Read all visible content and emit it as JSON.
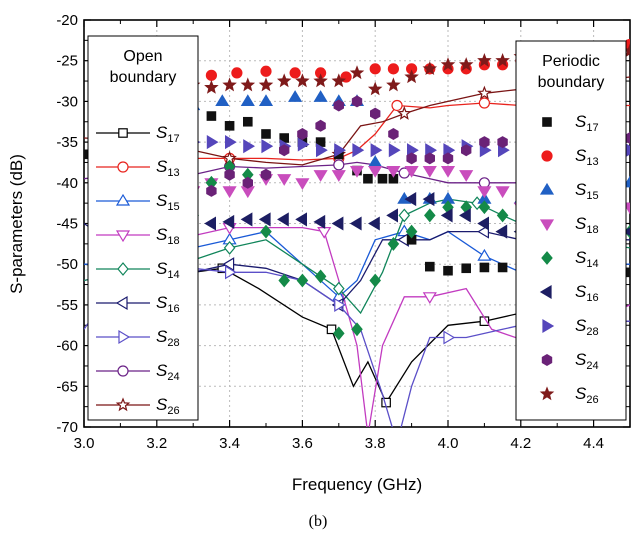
{
  "chart_data": {
    "type": "line",
    "caption": "(b)",
    "xlabel": "Frequency (GHz)",
    "ylabel": "S-parameters (dB)",
    "xlim": [
      3.0,
      4.5
    ],
    "ylim": [
      -70,
      -20
    ],
    "xticks": [
      "3.0",
      "3.2",
      "3.4",
      "3.6",
      "3.8",
      "4.0",
      "4.2",
      "4.4"
    ],
    "yticks": [
      "-20",
      "-25",
      "-30",
      "-35",
      "-40",
      "-45",
      "-50",
      "-55",
      "-60",
      "-65",
      "-70"
    ],
    "grid": true,
    "legend_open": {
      "title_lines": [
        "Open",
        "boundary"
      ],
      "placement": "left",
      "entries": [
        {
          "base": "S",
          "sub": "17"
        },
        {
          "base": "S",
          "sub": "13"
        },
        {
          "base": "S",
          "sub": "15"
        },
        {
          "base": "S",
          "sub": "18"
        },
        {
          "base": "S",
          "sub": "14"
        },
        {
          "base": "S",
          "sub": "16"
        },
        {
          "base": "S",
          "sub": "28"
        },
        {
          "base": "S",
          "sub": "24"
        },
        {
          "base": "S",
          "sub": "26"
        }
      ]
    },
    "legend_periodic": {
      "title_lines": [
        "Periodic",
        "boundary"
      ],
      "placement": "right",
      "entries": [
        {
          "base": "S",
          "sub": "17"
        },
        {
          "base": "S",
          "sub": "13"
        },
        {
          "base": "S",
          "sub": "15"
        },
        {
          "base": "S",
          "sub": "18"
        },
        {
          "base": "S",
          "sub": "14"
        },
        {
          "base": "S",
          "sub": "16"
        },
        {
          "base": "S",
          "sub": "28"
        },
        {
          "base": "S",
          "sub": "24"
        },
        {
          "base": "S",
          "sub": "26"
        }
      ]
    },
    "series_open": [
      {
        "name": "S17",
        "color": "#000000",
        "marker": "square",
        "x": [
          3.0,
          3.1,
          3.2,
          3.3,
          3.38,
          3.48,
          3.6,
          3.68,
          3.74,
          3.78,
          3.83,
          3.9,
          4.0,
          4.1,
          4.2,
          4.3,
          4.4,
          4.5
        ],
        "y": [
          -50,
          -50.5,
          -51.5,
          -51,
          -50.5,
          -53,
          -56.5,
          -58,
          -65,
          -62,
          -67,
          -62,
          -57.5,
          -57,
          -56,
          -57,
          -57,
          -57
        ]
      },
      {
        "name": "S13",
        "color": "#e8231d",
        "marker": "circle",
        "x": [
          3.0,
          3.1,
          3.2,
          3.3,
          3.4,
          3.5,
          3.6,
          3.7,
          3.75,
          3.8,
          3.86,
          3.95,
          4.0,
          4.1,
          4.2,
          4.3,
          4.4,
          4.5
        ],
        "y": [
          -37,
          -37,
          -37,
          -37,
          -37,
          -37,
          -37.2,
          -37,
          -36,
          -34,
          -30.5,
          -30.8,
          -30.5,
          -30.2,
          -30.5,
          -30.5,
          -30.5,
          -30.5
        ]
      },
      {
        "name": "S15",
        "color": "#1a5ad7",
        "marker": "triangle-up",
        "x": [
          3.0,
          3.1,
          3.2,
          3.3,
          3.4,
          3.5,
          3.6,
          3.7,
          3.75,
          3.8,
          3.88,
          3.95,
          4.0,
          4.1,
          4.2,
          4.3,
          4.4,
          4.5
        ],
        "y": [
          -50,
          -50,
          -49.5,
          -48,
          -47,
          -46,
          -50,
          -54,
          -52,
          -47,
          -46,
          -47,
          -46,
          -49,
          -51,
          -50,
          -50,
          -50
        ]
      },
      {
        "name": "S18",
        "color": "#c23bc0",
        "marker": "triangle-down",
        "x": [
          3.0,
          3.1,
          3.2,
          3.3,
          3.4,
          3.48,
          3.6,
          3.66,
          3.7,
          3.75,
          3.78,
          3.82,
          3.88,
          3.95,
          4.05,
          4.12,
          4.25,
          4.35,
          4.5
        ],
        "y": [
          -52,
          -51,
          -47,
          -46.5,
          -45.5,
          -45.5,
          -45.5,
          -46,
          -52,
          -60,
          -71,
          -60,
          -54,
          -54,
          -53,
          -58,
          -60,
          -58,
          -55
        ]
      },
      {
        "name": "S14",
        "color": "#10855a",
        "marker": "diamond",
        "x": [
          3.0,
          3.1,
          3.2,
          3.3,
          3.4,
          3.5,
          3.6,
          3.7,
          3.76,
          3.82,
          3.88,
          3.95,
          4.0,
          4.08,
          4.15,
          4.25,
          4.35,
          4.5
        ],
        "y": [
          -52,
          -51,
          -50,
          -49.5,
          -48,
          -47,
          -50,
          -53,
          -56,
          -51,
          -44,
          -42.5,
          -42,
          -42.5,
          -44,
          -46,
          -47,
          -48
        ]
      },
      {
        "name": "S16",
        "color": "#1b1b6e",
        "marker": "triangle-left",
        "x": [
          3.0,
          3.1,
          3.2,
          3.3,
          3.4,
          3.5,
          3.6,
          3.7,
          3.76,
          3.82,
          3.88,
          3.95,
          4.0,
          4.1,
          4.2,
          4.3,
          4.4,
          4.5
        ],
        "y": [
          -45,
          -48,
          -51,
          -51,
          -50,
          -50.5,
          -52,
          -55,
          -52,
          -47,
          -47,
          -47,
          -46,
          -46,
          -47,
          -47,
          -47,
          -47
        ]
      },
      {
        "name": "S28",
        "color": "#5b4fc8",
        "marker": "triangle-right",
        "x": [
          3.0,
          3.1,
          3.2,
          3.3,
          3.4,
          3.5,
          3.6,
          3.7,
          3.76,
          3.82,
          3.86,
          3.9,
          3.95,
          4.0,
          4.05,
          4.15,
          4.25,
          4.35,
          4.5
        ],
        "y": [
          -58,
          -51.5,
          -51,
          -50.5,
          -51,
          -51,
          -52,
          -55,
          -58,
          -66,
          -72,
          -65,
          -59,
          -59,
          -59,
          -58,
          -57,
          -57,
          -57
        ]
      },
      {
        "name": "S24",
        "color": "#6b2287",
        "marker": "circle",
        "x": [
          3.0,
          3.1,
          3.2,
          3.3,
          3.4,
          3.5,
          3.6,
          3.7,
          3.75,
          3.8,
          3.88,
          3.95,
          4.0,
          4.1,
          4.2,
          4.3,
          4.4,
          4.5
        ],
        "y": [
          -39.5,
          -39,
          -39,
          -39,
          -38,
          -38.2,
          -38,
          -37.8,
          -37.5,
          -37.8,
          -38.8,
          -39.5,
          -40,
          -40,
          -40,
          -40,
          -40,
          -40
        ]
      },
      {
        "name": "S26",
        "color": "#7a1414",
        "marker": "star",
        "x": [
          3.0,
          3.1,
          3.2,
          3.3,
          3.4,
          3.5,
          3.6,
          3.7,
          3.76,
          3.82,
          3.88,
          3.95,
          4.0,
          4.1,
          4.2,
          4.3,
          4.4,
          4.5
        ],
        "y": [
          -34.5,
          -34.7,
          -35,
          -36,
          -37,
          -37.5,
          -37.8,
          -36.5,
          -33,
          -32.5,
          -31.5,
          -30.5,
          -30,
          -29,
          -28.5,
          -28,
          -27.5,
          -27
        ]
      }
    ],
    "series_periodic": [
      {
        "name": "S17",
        "color": "#111111",
        "marker": "square",
        "x": [
          3.0,
          3.05,
          3.12,
          3.2,
          3.25,
          3.3,
          3.35,
          3.4,
          3.45,
          3.5,
          3.55,
          3.6,
          3.65,
          3.7,
          3.75,
          3.78,
          3.82,
          3.85,
          3.9,
          3.95,
          4.0,
          4.05,
          4.1,
          4.15,
          4.2,
          4.25,
          4.3,
          4.35,
          4.4,
          4.45,
          4.5
        ],
        "y": [
          -36.5,
          -34.5,
          -33.5,
          -32,
          -31.8,
          -31,
          -31.8,
          -33,
          -32.5,
          -34,
          -34.5,
          -35,
          -35,
          -36.5,
          -38.5,
          -39.5,
          -39.5,
          -39.5,
          -47,
          -50.3,
          -50.8,
          -50.5,
          -50.4,
          -50.4,
          -50.4,
          -51,
          -51,
          -51,
          -51,
          -51,
          -51
        ]
      },
      {
        "name": "S13",
        "color": "#ed1c1c",
        "marker": "circle",
        "x": [
          3.05,
          3.12,
          3.2,
          3.28,
          3.35,
          3.42,
          3.5,
          3.58,
          3.65,
          3.72,
          3.8,
          3.85,
          3.9,
          3.95,
          4.0,
          4.05,
          4.1,
          4.15,
          4.2,
          4.25,
          4.3,
          4.38,
          4.45,
          4.5
        ],
        "y": [
          -27,
          -27.5,
          -27,
          -27,
          -26.8,
          -26.5,
          -26.3,
          -26.5,
          -26.5,
          -27,
          -26,
          -26,
          -26,
          -26,
          -26,
          -26,
          -25.5,
          -25.5,
          -25,
          -25,
          -24.5,
          -24,
          -24,
          -23
        ]
      },
      {
        "name": "S15",
        "color": "#2160c4",
        "marker": "triangle-up",
        "x": [
          3.3,
          3.38,
          3.45,
          3.5,
          3.58,
          3.65,
          3.7,
          3.75,
          3.8,
          3.88,
          3.95,
          4.0,
          4.1,
          4.2,
          4.3,
          4.4,
          4.5
        ],
        "y": [
          -30.5,
          -30,
          -30,
          -30,
          -29.5,
          -29.5,
          -30,
          -30,
          -37.5,
          -42,
          -42,
          -42,
          -42,
          -42,
          -42,
          -41,
          -40
        ]
      },
      {
        "name": "S18",
        "color": "#c94dbd",
        "marker": "triangle-down",
        "x": [
          3.3,
          3.35,
          3.4,
          3.45,
          3.5,
          3.55,
          3.6,
          3.65,
          3.7,
          3.75,
          3.8,
          3.85,
          3.9,
          3.95,
          4.0,
          4.05,
          4.1,
          4.15,
          4.2,
          4.3,
          4.4,
          4.5
        ],
        "y": [
          -41,
          -40,
          -41,
          -41,
          -39.5,
          -39.5,
          -40,
          -39,
          -39,
          -38.5,
          -38.5,
          -38.5,
          -38.5,
          -38.5,
          -38.5,
          -39,
          -41,
          -41,
          -43,
          -43,
          -43,
          -43
        ]
      },
      {
        "name": "S14",
        "color": "#148a48",
        "marker": "diamond",
        "x": [
          3.3,
          3.35,
          3.4,
          3.45,
          3.5,
          3.55,
          3.6,
          3.65,
          3.7,
          3.75,
          3.8,
          3.85,
          3.9,
          3.95,
          4.0,
          4.05,
          4.1,
          4.15,
          4.2,
          4.3,
          4.4,
          4.5
        ],
        "y": [
          -44,
          -40,
          -38,
          -39,
          -46,
          -52,
          -52,
          -51.5,
          -58.5,
          -58,
          -52,
          -47.5,
          -46,
          -44,
          -43,
          -43,
          -43,
          -44,
          -46,
          -46,
          -46,
          -46
        ]
      },
      {
        "name": "S16",
        "color": "#1d1e63",
        "marker": "triangle-left",
        "x": [
          3.3,
          3.35,
          3.4,
          3.45,
          3.5,
          3.55,
          3.6,
          3.65,
          3.7,
          3.75,
          3.8,
          3.85,
          3.9,
          3.95,
          4.0,
          4.05,
          4.1,
          4.15,
          4.2,
          4.3,
          4.4,
          4.5
        ],
        "y": [
          -45.5,
          -45,
          -44.8,
          -44.5,
          -44.5,
          -44.5,
          -44.5,
          -44.8,
          -45,
          -45,
          -45,
          -44,
          -42,
          -42,
          -44,
          -44,
          -45,
          -46,
          -46,
          -46,
          -46,
          -46
        ]
      },
      {
        "name": "S28",
        "color": "#5546bb",
        "marker": "triangle-right",
        "x": [
          3.3,
          3.35,
          3.4,
          3.45,
          3.5,
          3.55,
          3.6,
          3.65,
          3.7,
          3.75,
          3.8,
          3.85,
          3.9,
          3.95,
          4.0,
          4.05,
          4.1,
          4.15,
          4.2,
          4.3,
          4.4,
          4.5
        ],
        "y": [
          -35,
          -35,
          -35,
          -35.5,
          -35.5,
          -35.5,
          -35.3,
          -36,
          -36,
          -36,
          -36,
          -36,
          -36,
          -36,
          -36,
          -35.5,
          -36,
          -36,
          -36,
          -36,
          -36,
          -36
        ]
      },
      {
        "name": "S24",
        "color": "#6a2277",
        "marker": "hexagon",
        "x": [
          3.3,
          3.35,
          3.4,
          3.45,
          3.5,
          3.55,
          3.6,
          3.65,
          3.7,
          3.75,
          3.8,
          3.85,
          3.9,
          3.95,
          4.0,
          4.05,
          4.1,
          4.15,
          4.2,
          4.3,
          4.4,
          4.5
        ],
        "y": [
          -40,
          -41,
          -39,
          -40,
          -39,
          -36,
          -34,
          -33,
          -30.5,
          -30,
          -31.5,
          -34,
          -37,
          -37,
          -37,
          -36,
          -35,
          -35,
          -34.5,
          -34.5,
          -34.5,
          -34.5
        ]
      },
      {
        "name": "S26",
        "color": "#7f1a1a",
        "marker": "star",
        "x": [
          3.3,
          3.35,
          3.4,
          3.45,
          3.5,
          3.55,
          3.6,
          3.65,
          3.7,
          3.75,
          3.8,
          3.85,
          3.9,
          3.95,
          4.0,
          4.05,
          4.1,
          4.15,
          4.2,
          4.25,
          4.3,
          4.4,
          4.5
        ],
        "y": [
          -28,
          -28.3,
          -28,
          -28,
          -28,
          -27.5,
          -27.5,
          -27.5,
          -27.5,
          -26.5,
          -28.5,
          -28,
          -27,
          -26,
          -25.5,
          -25.5,
          -25,
          -25,
          -24.5,
          -24.5,
          -24.5,
          -24,
          -23.8
        ]
      }
    ]
  }
}
